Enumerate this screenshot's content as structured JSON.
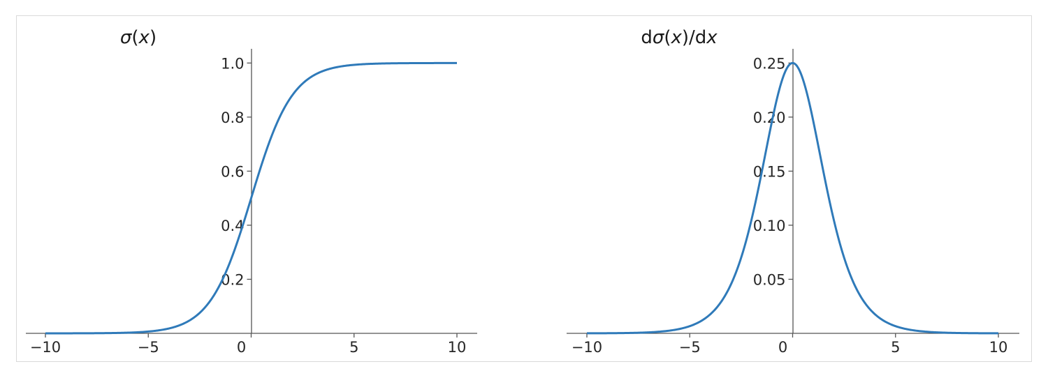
{
  "chart_data": [
    {
      "type": "line",
      "function": "sigmoid",
      "title": {
        "prefix": "",
        "symbol": "σ",
        "open": "(",
        "var": "x",
        "close": ")",
        "suffix": "",
        "suffix_var": ""
      },
      "xlim": [
        -10,
        10
      ],
      "ylim": [
        0,
        1.05
      ],
      "xticks": [
        -10,
        -5,
        0,
        5,
        10
      ],
      "xtick_labels": [
        "−10",
        "−5",
        "0",
        "5",
        "10"
      ],
      "yticks": [
        0.2,
        0.4,
        0.6,
        0.8,
        1.0
      ],
      "ytick_labels": [
        "0.2",
        "0.4",
        "0.6",
        "0.8",
        "1.0"
      ],
      "series": [
        {
          "color": "#2f7ab9",
          "x": [
            -10,
            -8,
            -6,
            -5,
            -4,
            -3,
            -2,
            -1,
            0,
            1,
            2,
            3,
            4,
            5,
            6,
            8,
            10
          ],
          "y": [
            4.54e-05,
            0.000335,
            0.00247,
            0.00669,
            0.018,
            0.0474,
            0.119,
            0.269,
            0.5,
            0.731,
            0.881,
            0.953,
            0.982,
            0.993,
            0.998,
            0.9997,
            0.99995
          ]
        }
      ]
    },
    {
      "type": "line",
      "function": "sigmoid_derivative",
      "title": {
        "prefix": "d",
        "symbol": "σ",
        "open": "(",
        "var": "x",
        "close": ")/d",
        "suffix": "",
        "suffix_var": "x"
      },
      "xlim": [
        -10,
        10
      ],
      "ylim": [
        0,
        0.2625
      ],
      "xticks": [
        -10,
        -5,
        0,
        5,
        10
      ],
      "xtick_labels": [
        "−10",
        "−5",
        "0",
        "5",
        "10"
      ],
      "yticks": [
        0.05,
        0.1,
        0.15,
        0.2,
        0.25
      ],
      "ytick_labels": [
        "0.05",
        "0.10",
        "0.15",
        "0.20",
        "0.25"
      ],
      "series": [
        {
          "color": "#2f7ab9",
          "x": [
            -10,
            -8,
            -6,
            -5,
            -4,
            -3,
            -2,
            -1,
            0,
            1,
            2,
            3,
            4,
            5,
            6,
            8,
            10
          ],
          "y": [
            4.54e-05,
            0.000335,
            0.00247,
            0.00665,
            0.0177,
            0.0452,
            0.105,
            0.197,
            0.25,
            0.197,
            0.105,
            0.0452,
            0.0177,
            0.00665,
            0.00247,
            0.000335,
            4.54e-05
          ]
        }
      ]
    }
  ]
}
